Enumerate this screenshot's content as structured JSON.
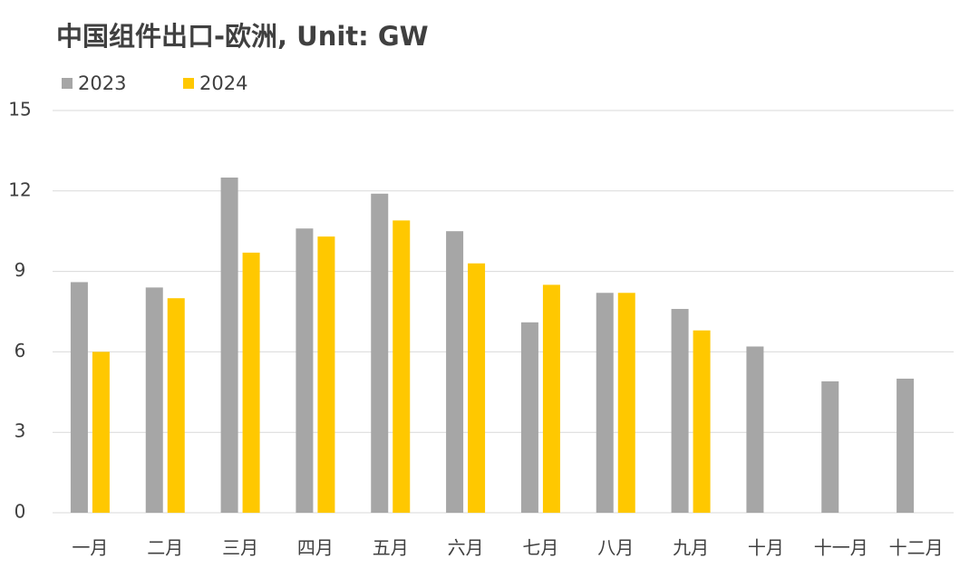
{
  "chart_data": {
    "type": "bar",
    "title": "中国组件出口-欧洲, Unit: GW",
    "categories": [
      "一月",
      "二月",
      "三月",
      "四月",
      "五月",
      "六月",
      "七月",
      "八月",
      "九月",
      "十月",
      "十一月",
      "十二月"
    ],
    "series": [
      {
        "name": "2023",
        "color": "#a6a6a6",
        "values": [
          8.6,
          8.4,
          12.5,
          10.6,
          11.9,
          10.5,
          7.1,
          8.2,
          7.6,
          6.2,
          4.9,
          5.0
        ]
      },
      {
        "name": "2024",
        "color": "#ffc800",
        "values": [
          6.0,
          8.0,
          9.7,
          10.3,
          10.9,
          9.3,
          8.5,
          8.2,
          6.8,
          null,
          null,
          null
        ]
      }
    ],
    "ylim": [
      0,
      15
    ],
    "yticks": [
      0,
      3,
      6,
      9,
      12,
      15
    ],
    "grid": true
  }
}
